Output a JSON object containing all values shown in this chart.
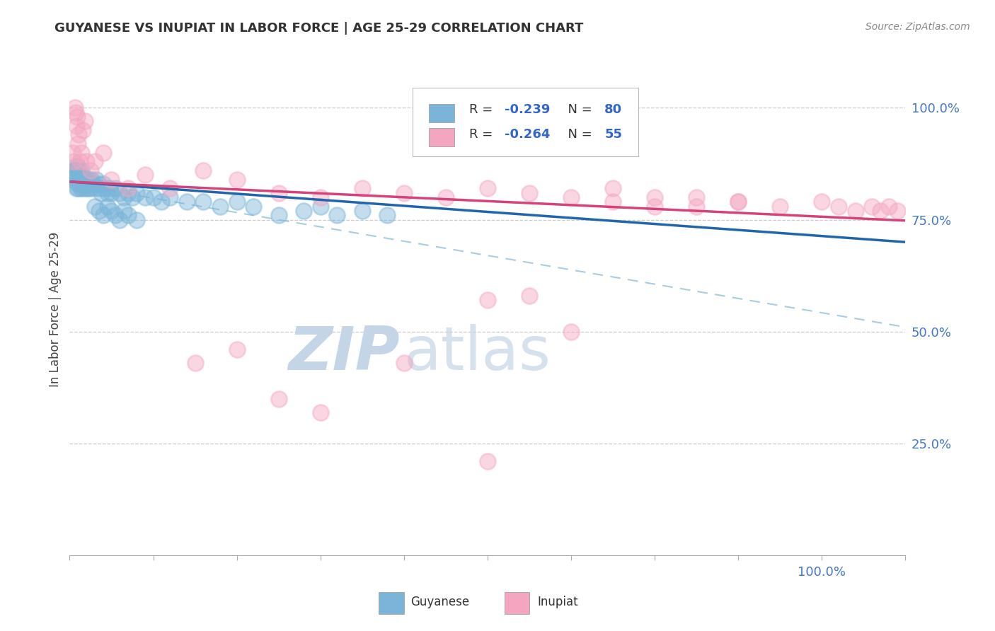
{
  "title": "GUYANESE VS INUPIAT IN LABOR FORCE | AGE 25-29 CORRELATION CHART",
  "source": "Source: ZipAtlas.com",
  "ylabel": "In Labor Force | Age 25-29",
  "y_ticks": [
    0.25,
    0.5,
    0.75,
    1.0
  ],
  "y_tick_labels": [
    "25.0%",
    "50.0%",
    "75.0%",
    "100.0%"
  ],
  "xlim": [
    0.0,
    1.0
  ],
  "ylim": [
    0.0,
    1.1
  ],
  "legend_label1": "Guyanese",
  "legend_label2": "Inupiat",
  "blue_scatter": "#7ab5d9",
  "pink_scatter": "#f4a6c0",
  "blue_line": "#2166ac",
  "pink_line": "#d6437a",
  "dashed_line": "#a8cce0",
  "background": "#ffffff",
  "watermark_ZIP": "#c5d5e8",
  "watermark_atlas": "#c5d5e8",
  "ytick_color": "#4477cc",
  "xtick_color": "#4477cc",
  "grid_color": "#cccccc",
  "title_color": "#333333",
  "source_color": "#888888",
  "legend_text_color": "#333333",
  "R_N_color": "#3366cc",
  "blue_line_x": [
    0.0,
    1.0
  ],
  "blue_line_y": [
    0.835,
    0.7
  ],
  "pink_line_x": [
    0.0,
    1.0
  ],
  "pink_line_y": [
    0.835,
    0.748
  ],
  "dashed_line_x": [
    0.0,
    1.0
  ],
  "dashed_line_y": [
    0.83,
    0.51
  ],
  "guyanese_x": [
    0.004,
    0.005,
    0.006,
    0.006,
    0.007,
    0.007,
    0.008,
    0.008,
    0.008,
    0.009,
    0.009,
    0.01,
    0.01,
    0.01,
    0.01,
    0.011,
    0.011,
    0.012,
    0.012,
    0.013,
    0.013,
    0.014,
    0.014,
    0.015,
    0.015,
    0.016,
    0.016,
    0.017,
    0.018,
    0.019,
    0.02,
    0.02,
    0.021,
    0.022,
    0.023,
    0.024,
    0.025,
    0.026,
    0.028,
    0.03,
    0.032,
    0.034,
    0.036,
    0.038,
    0.04,
    0.042,
    0.045,
    0.048,
    0.05,
    0.055,
    0.06,
    0.065,
    0.07,
    0.075,
    0.08,
    0.09,
    0.1,
    0.11,
    0.12,
    0.14,
    0.16,
    0.18,
    0.2,
    0.22,
    0.25,
    0.28,
    0.3,
    0.32,
    0.35,
    0.38,
    0.03,
    0.035,
    0.04,
    0.045,
    0.05,
    0.055,
    0.06,
    0.065,
    0.07,
    0.08
  ],
  "guyanese_y": [
    0.84,
    0.86,
    0.84,
    0.86,
    0.85,
    0.87,
    0.84,
    0.86,
    0.82,
    0.84,
    0.85,
    0.83,
    0.85,
    0.87,
    0.82,
    0.84,
    0.86,
    0.83,
    0.85,
    0.84,
    0.82,
    0.84,
    0.86,
    0.83,
    0.85,
    0.84,
    0.82,
    0.84,
    0.83,
    0.84,
    0.82,
    0.84,
    0.83,
    0.82,
    0.84,
    0.83,
    0.82,
    0.84,
    0.83,
    0.82,
    0.84,
    0.83,
    0.82,
    0.81,
    0.83,
    0.82,
    0.81,
    0.82,
    0.81,
    0.82,
    0.81,
    0.8,
    0.81,
    0.8,
    0.81,
    0.8,
    0.8,
    0.79,
    0.8,
    0.79,
    0.79,
    0.78,
    0.79,
    0.78,
    0.76,
    0.77,
    0.78,
    0.76,
    0.77,
    0.76,
    0.78,
    0.77,
    0.76,
    0.78,
    0.77,
    0.76,
    0.75,
    0.77,
    0.76,
    0.75
  ],
  "inupiat_x": [
    0.004,
    0.005,
    0.006,
    0.007,
    0.008,
    0.009,
    0.01,
    0.011,
    0.012,
    0.014,
    0.016,
    0.018,
    0.02,
    0.025,
    0.03,
    0.04,
    0.05,
    0.07,
    0.09,
    0.12,
    0.16,
    0.2,
    0.25,
    0.3,
    0.35,
    0.4,
    0.45,
    0.5,
    0.55,
    0.6,
    0.65,
    0.7,
    0.75,
    0.8,
    0.85,
    0.9,
    0.92,
    0.94,
    0.96,
    0.97,
    0.98,
    0.99,
    0.65,
    0.7,
    0.75,
    0.8,
    0.5,
    0.55,
    0.6,
    0.2,
    0.15,
    0.25,
    0.3,
    0.4,
    0.5
  ],
  "inupiat_y": [
    0.9,
    0.88,
    1.0,
    0.99,
    0.96,
    0.98,
    0.92,
    0.94,
    0.88,
    0.9,
    0.95,
    0.97,
    0.88,
    0.86,
    0.88,
    0.9,
    0.84,
    0.82,
    0.85,
    0.82,
    0.86,
    0.84,
    0.81,
    0.8,
    0.82,
    0.81,
    0.8,
    0.82,
    0.81,
    0.8,
    0.79,
    0.78,
    0.8,
    0.79,
    0.78,
    0.79,
    0.78,
    0.77,
    0.78,
    0.77,
    0.78,
    0.77,
    0.82,
    0.8,
    0.78,
    0.79,
    0.57,
    0.58,
    0.5,
    0.46,
    0.43,
    0.35,
    0.32,
    0.43,
    0.21
  ]
}
